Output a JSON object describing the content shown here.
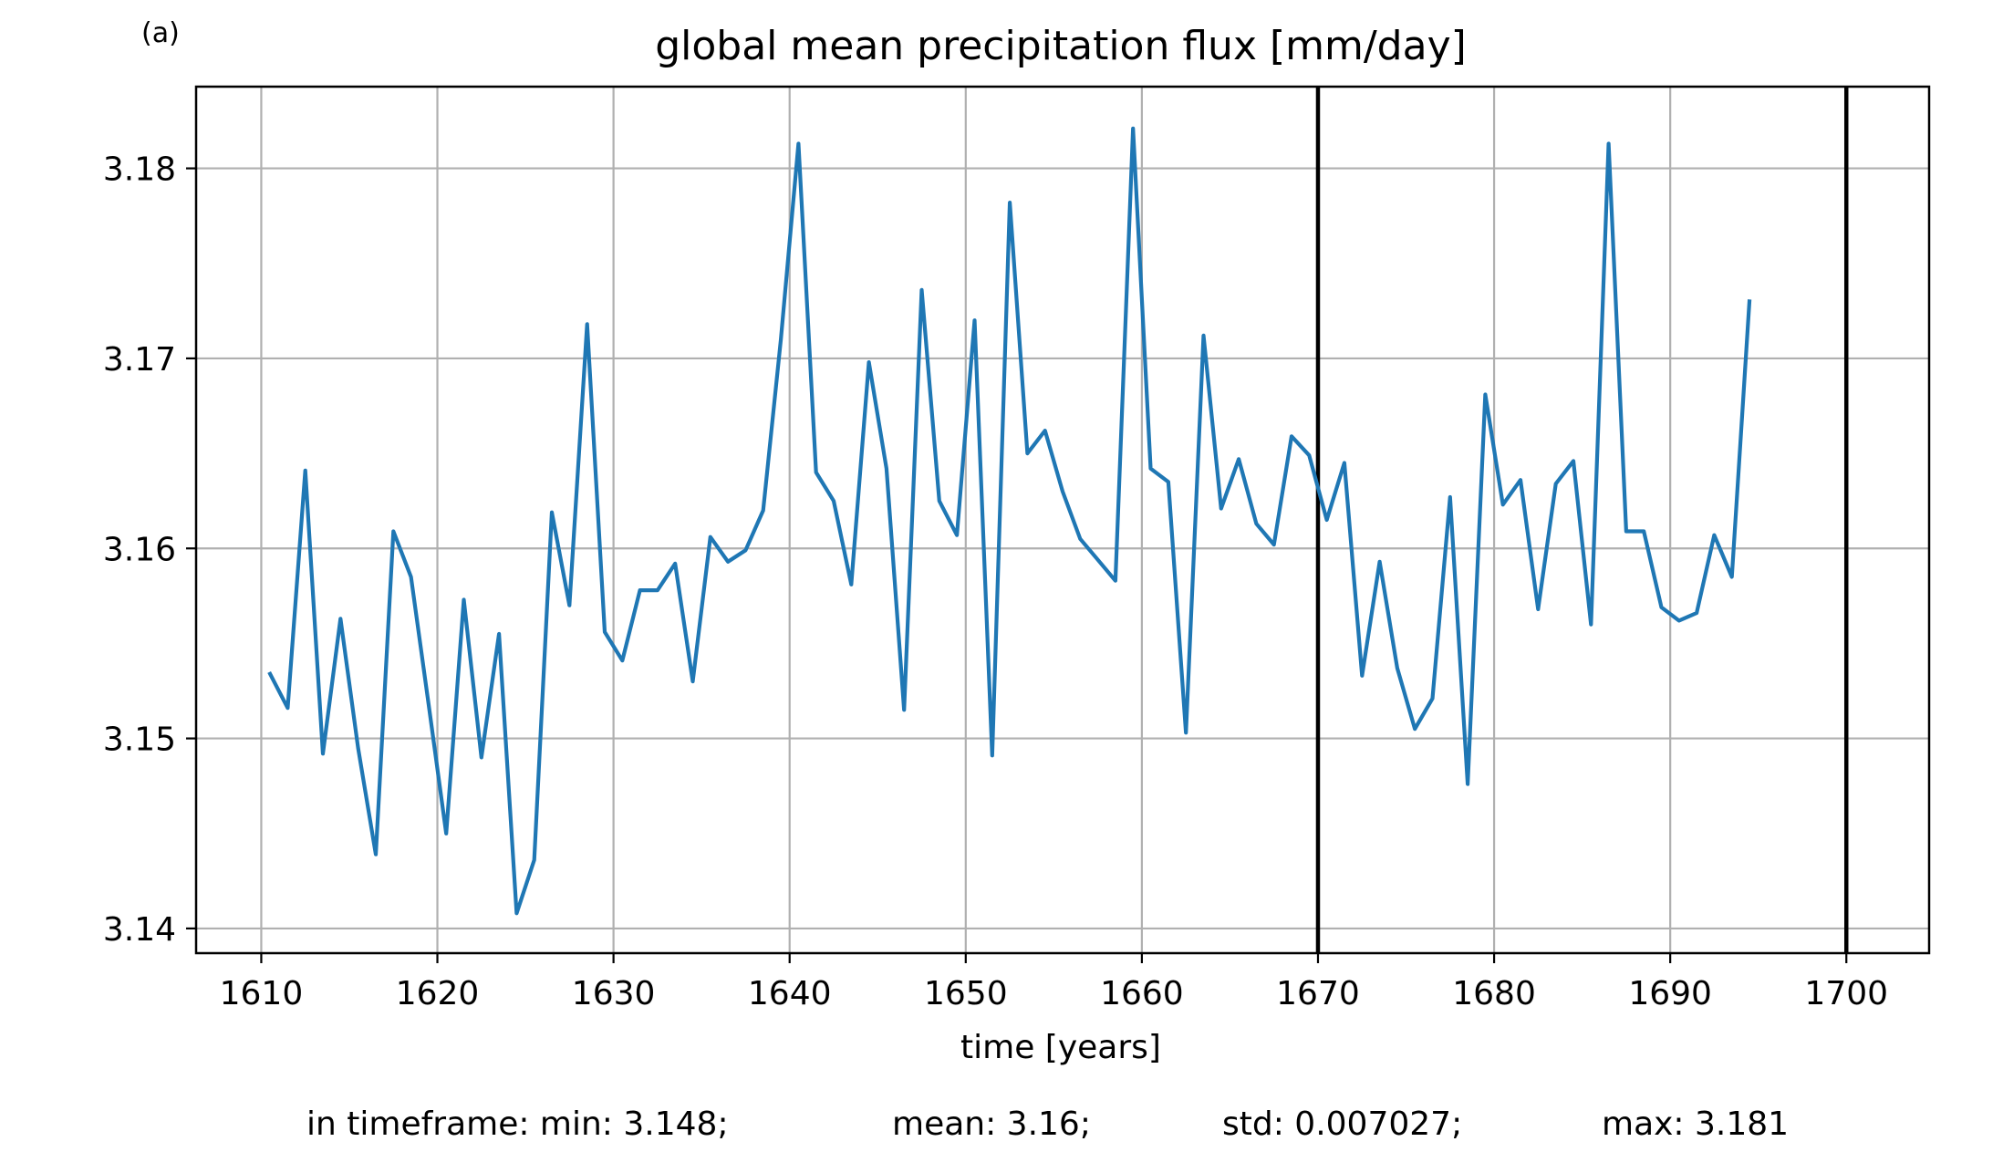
{
  "panel_label": "(a)",
  "stats_line": {
    "min": "in timeframe: min: 3.148;",
    "mean": "mean: 3.16;",
    "std": "std: 0.007027;",
    "max": "max: 3.181"
  },
  "colors": {
    "series": "#1f77b4",
    "grid": "#b0b0b0",
    "axes": "#000000",
    "vline": "#000000"
  },
  "chart_data": {
    "type": "line",
    "title": "global mean precipitation flux [mm/day]",
    "xlabel": "time [years]",
    "ylabel": "",
    "xlim": [
      1606.3,
      1704.7
    ],
    "ylim": [
      3.1387,
      3.1843
    ],
    "xticks": [
      1610,
      1620,
      1630,
      1640,
      1650,
      1660,
      1670,
      1680,
      1690,
      1700
    ],
    "yticks": [
      3.14,
      3.15,
      3.16,
      3.17,
      3.18
    ],
    "ytick_labels": [
      "3.14",
      "3.15",
      "3.16",
      "3.17",
      "3.18"
    ],
    "grid": true,
    "vlines": [
      1670,
      1700
    ],
    "series": [
      {
        "x": [
          1610.5,
          1611.5,
          1612.5,
          1613.5,
          1614.5,
          1615.5,
          1616.5,
          1617.5,
          1618.5,
          1619.5,
          1620.5,
          1621.5,
          1622.5,
          1623.5,
          1624.5,
          1625.5,
          1626.5,
          1627.5,
          1628.5,
          1629.5,
          1630.5,
          1631.5,
          1632.5,
          1633.5,
          1634.5,
          1635.5,
          1636.5,
          1637.5,
          1638.5,
          1639.5,
          1640.5,
          1641.5,
          1642.5,
          1643.5,
          1644.5,
          1645.5,
          1646.5,
          1647.5,
          1648.5,
          1649.5,
          1650.5,
          1651.5,
          1652.5,
          1653.5,
          1654.5,
          1655.5,
          1656.5,
          1657.5,
          1658.5,
          1659.5,
          1660.5,
          1661.5,
          1662.5,
          1663.5,
          1664.5,
          1665.5,
          1666.5,
          1667.5,
          1668.5,
          1669.5,
          1670.5,
          1671.5,
          1672.5,
          1673.5,
          1674.5,
          1675.5,
          1676.5,
          1677.5,
          1678.5,
          1679.5,
          1680.5,
          1681.5,
          1682.5,
          1683.5,
          1684.5,
          1685.5,
          1686.5,
          1687.5,
          1688.5,
          1689.5,
          1690.5,
          1691.5,
          1692.5,
          1693.5,
          1694.5
        ],
        "y": [
          3.1534,
          3.1516,
          3.1641,
          3.1492,
          3.1563,
          3.1495,
          3.1439,
          3.1609,
          3.1585,
          3.1518,
          3.145,
          3.1573,
          3.149,
          3.1555,
          3.1408,
          3.1436,
          3.1619,
          3.157,
          3.1718,
          3.1556,
          3.1541,
          3.1578,
          3.1578,
          3.1592,
          3.153,
          3.1606,
          3.1593,
          3.1599,
          3.162,
          3.171,
          3.1813,
          3.164,
          3.1625,
          3.1581,
          3.1698,
          3.1642,
          3.1515,
          3.1736,
          3.1625,
          3.1607,
          3.172,
          3.1491,
          3.1782,
          3.165,
          3.1662,
          3.163,
          3.1605,
          3.1594,
          3.1583,
          3.1821,
          3.1642,
          3.1635,
          3.1503,
          3.1712,
          3.1621,
          3.1647,
          3.1613,
          3.1602,
          3.1659,
          3.1649,
          3.1615,
          3.1645,
          3.1533,
          3.1593,
          3.1537,
          3.1505,
          3.1521,
          3.1627,
          3.1476,
          3.1681,
          3.1623,
          3.1636,
          3.1568,
          3.1634,
          3.1646,
          3.156,
          3.1813,
          3.1609,
          3.1609,
          3.1569,
          3.1562,
          3.1566,
          3.1607,
          3.1585,
          3.173
        ]
      }
    ]
  }
}
